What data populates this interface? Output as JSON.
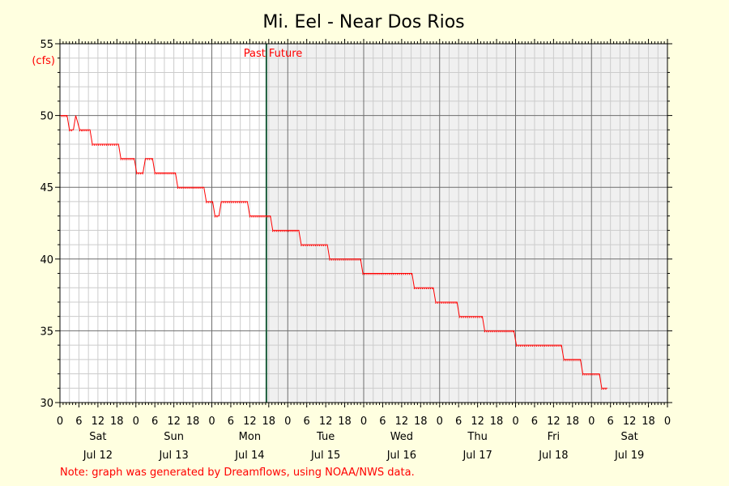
{
  "chart_data": {
    "type": "line",
    "title": "Mi. Eel - Near Dos Rios",
    "ylabel": "(cfs)",
    "xlabel": "",
    "ylim": [
      30,
      55
    ],
    "yticks": [
      30,
      35,
      40,
      45,
      50,
      55
    ],
    "xlim": [
      "2025-07-12 00:00",
      "2025-07-20 00:00"
    ],
    "hour_ticks": [
      "0",
      "6",
      "12",
      "18",
      "0",
      "6",
      "12",
      "18",
      "0",
      "6",
      "12",
      "18",
      "0",
      "6",
      "12",
      "18",
      "0",
      "6",
      "12",
      "18",
      "0",
      "6",
      "12",
      "18",
      "0",
      "6",
      "12",
      "18",
      "0",
      "6",
      "12",
      "18",
      "0"
    ],
    "days": [
      {
        "weekday": "Sat",
        "date": "Jul 12"
      },
      {
        "weekday": "Sun",
        "date": "Jul 13"
      },
      {
        "weekday": "Mon",
        "date": "Jul 14"
      },
      {
        "weekday": "Tue",
        "date": "Jul 15"
      },
      {
        "weekday": "Wed",
        "date": "Jul 16"
      },
      {
        "weekday": "Thu",
        "date": "Jul 17"
      },
      {
        "weekday": "Fri",
        "date": "Jul 18"
      },
      {
        "weekday": "Sat",
        "date": "Jul 19"
      }
    ],
    "now": "2025-07-14 17:15",
    "past_label": "Past",
    "future_label": "Future",
    "grid": true,
    "series": [
      {
        "color": "#ff0000",
        "x": [
          "2025-07-12 00:00",
          "2025-07-12 02:15",
          "2025-07-12 03:00",
          "2025-07-12 04:15",
          "2025-07-12 05:00",
          "2025-07-12 06:15",
          "2025-07-12 07:00",
          "2025-07-12 09:30",
          "2025-07-12 10:15",
          "2025-07-12 18:30",
          "2025-07-12 19:15",
          "2025-07-12 23:30",
          "2025-07-13 00:15",
          "2025-07-13 02:15",
          "2025-07-13 03:00",
          "2025-07-13 05:15",
          "2025-07-13 06:00",
          "2025-07-13 12:30",
          "2025-07-13 13:15",
          "2025-07-13 21:30",
          "2025-07-13 22:15",
          "2025-07-14 00:15",
          "2025-07-14 01:00",
          "2025-07-14 02:15",
          "2025-07-14 03:00",
          "2025-07-14 11:15",
          "2025-07-14 12:00",
          "2025-07-14 18:30",
          "2025-07-14 19:15",
          "2025-07-15 03:30",
          "2025-07-15 04:15",
          "2025-07-15 12:30",
          "2025-07-15 13:15",
          "2025-07-15 23:00",
          "2025-07-15 23:45",
          "2025-07-16 15:15",
          "2025-07-16 16:00",
          "2025-07-16 22:00",
          "2025-07-16 22:45",
          "2025-07-17 05:30",
          "2025-07-17 06:15",
          "2025-07-17 13:30",
          "2025-07-17 14:15",
          "2025-07-17 23:30",
          "2025-07-18 00:15",
          "2025-07-18 14:30",
          "2025-07-18 15:15",
          "2025-07-18 20:30",
          "2025-07-18 21:15",
          "2025-07-19 02:30",
          "2025-07-19 03:15",
          "2025-07-19 05:00"
        ],
        "y": [
          50,
          50,
          49,
          49,
          50,
          49,
          49,
          49,
          48,
          48,
          47,
          47,
          46,
          46,
          47,
          47,
          46,
          46,
          45,
          45,
          44,
          44,
          43,
          43,
          44,
          44,
          43,
          43,
          42,
          42,
          41,
          41,
          40,
          40,
          39,
          39,
          38,
          38,
          37,
          37,
          36,
          36,
          35,
          35,
          34,
          34,
          33,
          33,
          32,
          32,
          31,
          31
        ]
      }
    ],
    "note": "Note: graph was generated by Dreamflows, using NOAA/NWS data."
  }
}
